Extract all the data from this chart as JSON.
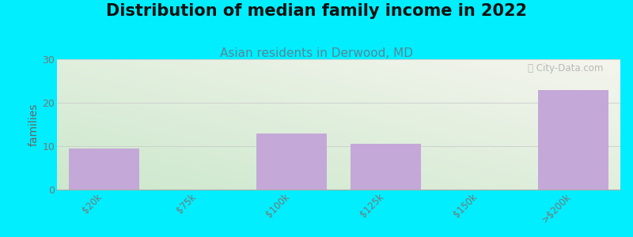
{
  "title": "Distribution of median family income in 2022",
  "subtitle": "Asian residents in Derwood, MD",
  "categories": [
    "$20k",
    "$75k",
    "$100k",
    "$125k",
    "$150k",
    ">$200k"
  ],
  "values": [
    9.5,
    0,
    13,
    10.5,
    0,
    23
  ],
  "bar_color": "#c4a8d8",
  "bar_edgecolor": "#c4a8d8",
  "ylabel": "families",
  "ylim": [
    0,
    30
  ],
  "yticks": [
    0,
    10,
    20,
    30
  ],
  "background_outer": "#00eeff",
  "background_inner_topleft": "#d6edd6",
  "background_inner_topright": "#f0f0e8",
  "background_inner_bottom": "#e8f5e8",
  "title_fontsize": 15,
  "subtitle_fontsize": 11,
  "subtitle_color": "#558899",
  "watermark": "ⓘ City-Data.com",
  "tick_label_color": "#777777",
  "ylabel_color": "#666666"
}
